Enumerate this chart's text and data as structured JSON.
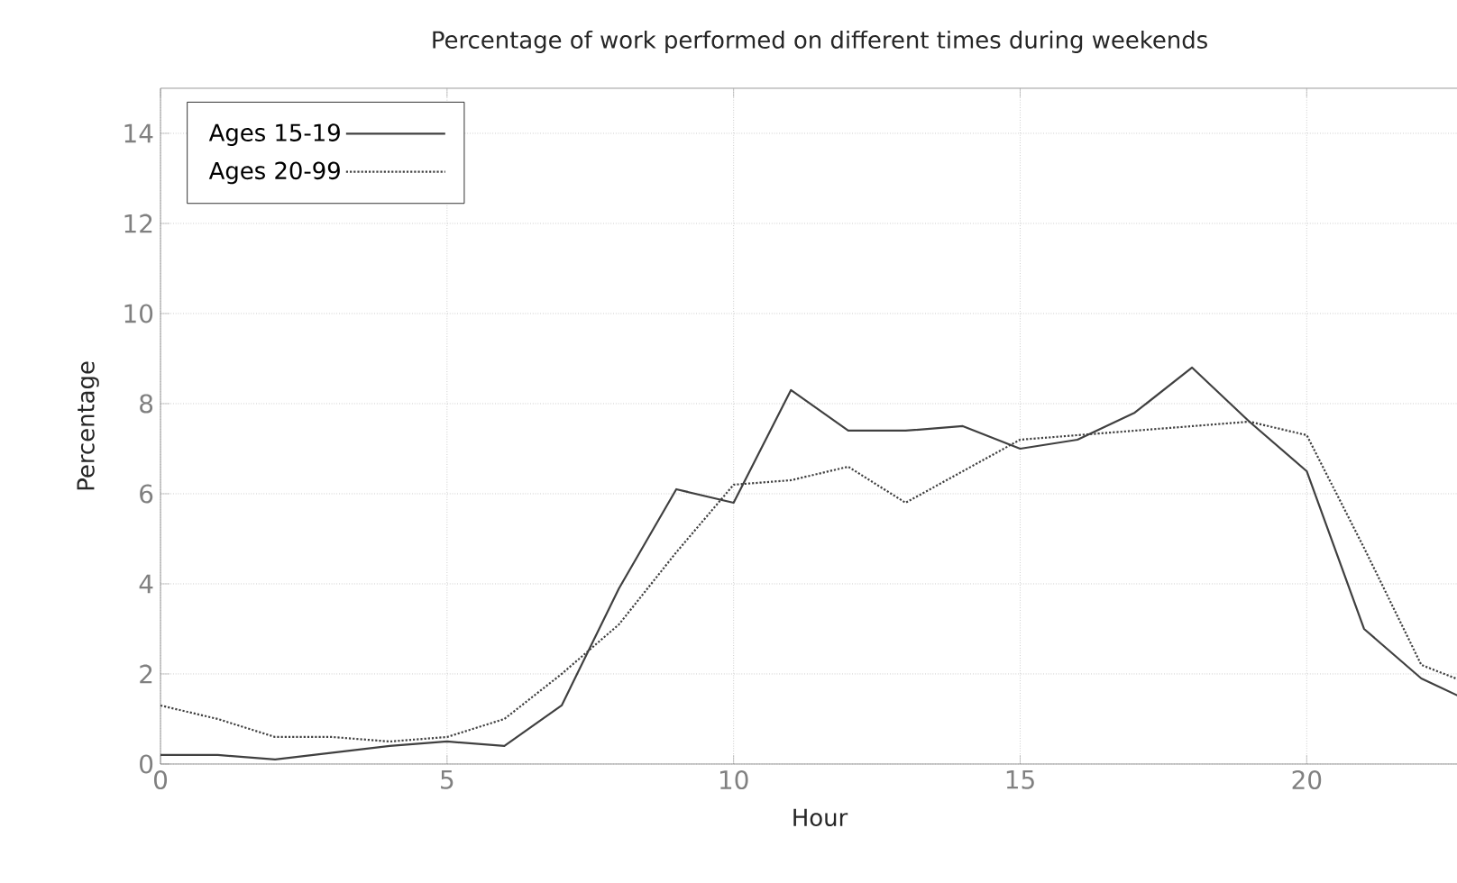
{
  "chart_data": {
    "type": "line",
    "title": "Percentage of work performed on different times during weekends",
    "xlabel": "Hour",
    "ylabel": "Percentage",
    "x": [
      0,
      1,
      2,
      3,
      4,
      5,
      6,
      7,
      8,
      9,
      10,
      11,
      12,
      13,
      14,
      15,
      16,
      17,
      18,
      19,
      20,
      21,
      22,
      23
    ],
    "series": [
      {
        "name": "Ages 15-19",
        "color": "#404040",
        "line_style": "solid",
        "values": [
          0.2,
          0.2,
          0.1,
          0.25,
          0.4,
          0.5,
          0.4,
          1.3,
          3.9,
          6.1,
          5.8,
          8.3,
          7.4,
          7.4,
          7.5,
          7.0,
          7.2,
          7.8,
          8.8,
          7.6,
          6.5,
          3.0,
          1.9,
          1.3
        ]
      },
      {
        "name": "Ages 20-99",
        "color": "#404040",
        "line_style": "dotted",
        "values": [
          1.3,
          1.0,
          0.6,
          0.6,
          0.5,
          0.6,
          1.0,
          2.0,
          3.1,
          4.7,
          6.2,
          6.3,
          6.6,
          5.8,
          6.5,
          7.2,
          7.3,
          7.4,
          7.5,
          7.6,
          7.3,
          4.8,
          2.2,
          1.7
        ]
      }
    ],
    "xlim": [
      0,
      23
    ],
    "ylim": [
      0,
      15
    ],
    "xticks": [
      0,
      5,
      10,
      15,
      20
    ],
    "yticks": [
      0,
      2,
      4,
      6,
      8,
      10,
      12,
      14
    ],
    "grid": true,
    "legend": "top left",
    "marker": "none"
  }
}
